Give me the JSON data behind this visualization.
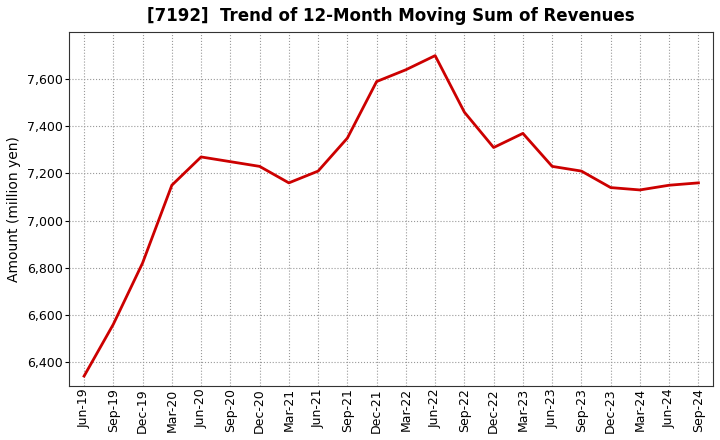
{
  "title": "[7192]  Trend of 12-Month Moving Sum of Revenues",
  "ylabel": "Amount (million yen)",
  "background_color": "#ffffff",
  "plot_bg_color": "#ffffff",
  "line_color": "#cc0000",
  "line_width": 2.0,
  "grid_color": "#999999",
  "labels": [
    "Jun-19",
    "Sep-19",
    "Dec-19",
    "Mar-20",
    "Jun-20",
    "Sep-20",
    "Dec-20",
    "Mar-21",
    "Jun-21",
    "Sep-21",
    "Dec-21",
    "Mar-22",
    "Jun-22",
    "Sep-22",
    "Dec-22",
    "Mar-23",
    "Jun-23",
    "Sep-23",
    "Dec-23",
    "Mar-24",
    "Jun-24",
    "Sep-24"
  ],
  "values": [
    6340,
    6560,
    6820,
    7150,
    7270,
    7250,
    7230,
    7160,
    7210,
    7350,
    7590,
    7640,
    7700,
    7460,
    7310,
    7370,
    7230,
    7210,
    7140,
    7130,
    7150,
    7160
  ],
  "ylim_min": 6300,
  "ylim_max": 7800,
  "yticks": [
    6400,
    6600,
    6800,
    7000,
    7200,
    7400,
    7600
  ],
  "title_fontsize": 12,
  "ylabel_fontsize": 10,
  "tick_fontsize": 9
}
